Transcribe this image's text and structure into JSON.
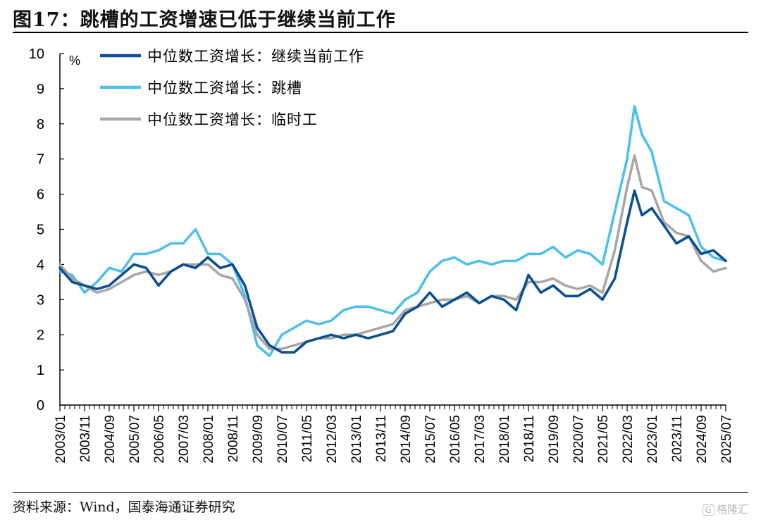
{
  "figure": {
    "title": "图17：跳槽的工资增速已低于继续当前工作",
    "source": "资料来源：Wind，国泰海通证券研究",
    "watermark": {
      "badge": "G",
      "text": "格隆汇"
    }
  },
  "chart_data": {
    "type": "line",
    "unit": "%",
    "ylim": [
      0,
      10
    ],
    "yticks": [
      "0",
      "1",
      "2",
      "3",
      "4",
      "5",
      "6",
      "7",
      "8",
      "9",
      "10"
    ],
    "xticks": [
      "2003/01",
      "2003/11",
      "2004/09",
      "2005/07",
      "2006/05",
      "2007/03",
      "2008/01",
      "2008/11",
      "2009/09",
      "2010/07",
      "2011/05",
      "2012/03",
      "2013/01",
      "2013/11",
      "2014/09",
      "2015/07",
      "2016/05",
      "2017/03",
      "2018/01",
      "2018/11",
      "2019/09",
      "2020/07",
      "2021/05",
      "2022/03",
      "2023/01",
      "2023/11",
      "2024/09",
      "2025/07"
    ],
    "grid": false,
    "legend_position": "top-left",
    "series": [
      {
        "name": "中位数工资增长：继续当前工作",
        "color": "#0b4f91",
        "points": [
          [
            "2003/01",
            3.9
          ],
          [
            "2003/06",
            3.5
          ],
          [
            "2003/11",
            3.4
          ],
          [
            "2004/04",
            3.3
          ],
          [
            "2004/09",
            3.4
          ],
          [
            "2005/02",
            3.7
          ],
          [
            "2005/07",
            4.0
          ],
          [
            "2005/12",
            3.9
          ],
          [
            "2006/05",
            3.4
          ],
          [
            "2006/10",
            3.8
          ],
          [
            "2007/03",
            4.0
          ],
          [
            "2007/08",
            3.9
          ],
          [
            "2008/01",
            4.2
          ],
          [
            "2008/06",
            3.9
          ],
          [
            "2008/11",
            4.0
          ],
          [
            "2009/04",
            3.4
          ],
          [
            "2009/09",
            2.2
          ],
          [
            "2010/02",
            1.7
          ],
          [
            "2010/07",
            1.5
          ],
          [
            "2010/12",
            1.5
          ],
          [
            "2011/05",
            1.8
          ],
          [
            "2011/10",
            1.9
          ],
          [
            "2012/03",
            2.0
          ],
          [
            "2012/08",
            1.9
          ],
          [
            "2013/01",
            2.0
          ],
          [
            "2013/06",
            1.9
          ],
          [
            "2013/11",
            2.0
          ],
          [
            "2014/04",
            2.1
          ],
          [
            "2014/09",
            2.6
          ],
          [
            "2015/02",
            2.8
          ],
          [
            "2015/07",
            3.2
          ],
          [
            "2015/12",
            2.8
          ],
          [
            "2016/05",
            3.0
          ],
          [
            "2016/10",
            3.2
          ],
          [
            "2017/03",
            2.9
          ],
          [
            "2017/08",
            3.1
          ],
          [
            "2018/01",
            3.0
          ],
          [
            "2018/06",
            2.7
          ],
          [
            "2018/11",
            3.7
          ],
          [
            "2019/04",
            3.2
          ],
          [
            "2019/09",
            3.4
          ],
          [
            "2020/02",
            3.1
          ],
          [
            "2020/07",
            3.1
          ],
          [
            "2020/12",
            3.3
          ],
          [
            "2021/05",
            3.0
          ],
          [
            "2021/10",
            3.6
          ],
          [
            "2022/03",
            5.2
          ],
          [
            "2022/06",
            6.1
          ],
          [
            "2022/09",
            5.4
          ],
          [
            "2023/01",
            5.6
          ],
          [
            "2023/06",
            5.1
          ],
          [
            "2023/11",
            4.6
          ],
          [
            "2024/04",
            4.8
          ],
          [
            "2024/09",
            4.3
          ],
          [
            "2025/02",
            4.4
          ],
          [
            "2025/07",
            4.1
          ]
        ]
      },
      {
        "name": "中位数工资增长：跳槽",
        "color": "#4fc0ea",
        "points": [
          [
            "2003/01",
            3.8
          ],
          [
            "2003/06",
            3.7
          ],
          [
            "2003/11",
            3.2
          ],
          [
            "2004/04",
            3.5
          ],
          [
            "2004/09",
            3.9
          ],
          [
            "2005/02",
            3.8
          ],
          [
            "2005/07",
            4.3
          ],
          [
            "2005/12",
            4.3
          ],
          [
            "2006/05",
            4.4
          ],
          [
            "2006/10",
            4.6
          ],
          [
            "2007/03",
            4.6
          ],
          [
            "2007/08",
            5.0
          ],
          [
            "2008/01",
            4.3
          ],
          [
            "2008/06",
            4.3
          ],
          [
            "2008/11",
            4.0
          ],
          [
            "2009/04",
            3.1
          ],
          [
            "2009/09",
            1.7
          ],
          [
            "2010/02",
            1.4
          ],
          [
            "2010/07",
            2.0
          ],
          [
            "2010/12",
            2.2
          ],
          [
            "2011/05",
            2.4
          ],
          [
            "2011/10",
            2.3
          ],
          [
            "2012/03",
            2.4
          ],
          [
            "2012/08",
            2.7
          ],
          [
            "2013/01",
            2.8
          ],
          [
            "2013/06",
            2.8
          ],
          [
            "2013/11",
            2.7
          ],
          [
            "2014/04",
            2.6
          ],
          [
            "2014/09",
            3.0
          ],
          [
            "2015/02",
            3.2
          ],
          [
            "2015/07",
            3.8
          ],
          [
            "2015/12",
            4.1
          ],
          [
            "2016/05",
            4.2
          ],
          [
            "2016/10",
            4.0
          ],
          [
            "2017/03",
            4.1
          ],
          [
            "2017/08",
            4.0
          ],
          [
            "2018/01",
            4.1
          ],
          [
            "2018/06",
            4.1
          ],
          [
            "2018/11",
            4.3
          ],
          [
            "2019/04",
            4.3
          ],
          [
            "2019/09",
            4.5
          ],
          [
            "2020/02",
            4.2
          ],
          [
            "2020/07",
            4.4
          ],
          [
            "2020/12",
            4.3
          ],
          [
            "2021/05",
            4.0
          ],
          [
            "2021/10",
            5.5
          ],
          [
            "2022/03",
            7.0
          ],
          [
            "2022/06",
            8.5
          ],
          [
            "2022/09",
            7.7
          ],
          [
            "2023/01",
            7.2
          ],
          [
            "2023/06",
            5.8
          ],
          [
            "2023/11",
            5.6
          ],
          [
            "2024/04",
            5.4
          ],
          [
            "2024/09",
            4.5
          ],
          [
            "2025/02",
            4.2
          ],
          [
            "2025/07",
            4.1
          ]
        ]
      },
      {
        "name": "中位数工资增长：临时工",
        "color": "#a7a7a7",
        "points": [
          [
            "2003/01",
            4.0
          ],
          [
            "2003/06",
            3.6
          ],
          [
            "2003/11",
            3.4
          ],
          [
            "2004/04",
            3.2
          ],
          [
            "2004/09",
            3.3
          ],
          [
            "2005/02",
            3.5
          ],
          [
            "2005/07",
            3.7
          ],
          [
            "2005/12",
            3.8
          ],
          [
            "2006/05",
            3.7
          ],
          [
            "2006/10",
            3.8
          ],
          [
            "2007/03",
            4.0
          ],
          [
            "2007/08",
            4.0
          ],
          [
            "2008/01",
            4.0
          ],
          [
            "2008/06",
            3.7
          ],
          [
            "2008/11",
            3.6
          ],
          [
            "2009/04",
            3.0
          ],
          [
            "2009/09",
            2.0
          ],
          [
            "2010/02",
            1.6
          ],
          [
            "2010/07",
            1.6
          ],
          [
            "2010/12",
            1.7
          ],
          [
            "2011/05",
            1.8
          ],
          [
            "2011/10",
            1.9
          ],
          [
            "2012/03",
            1.9
          ],
          [
            "2012/08",
            2.0
          ],
          [
            "2013/01",
            2.0
          ],
          [
            "2013/06",
            2.1
          ],
          [
            "2013/11",
            2.2
          ],
          [
            "2014/04",
            2.3
          ],
          [
            "2014/09",
            2.7
          ],
          [
            "2015/02",
            2.8
          ],
          [
            "2015/07",
            2.9
          ],
          [
            "2015/12",
            3.0
          ],
          [
            "2016/05",
            3.0
          ],
          [
            "2016/10",
            3.1
          ],
          [
            "2017/03",
            2.9
          ],
          [
            "2017/08",
            3.1
          ],
          [
            "2018/01",
            3.1
          ],
          [
            "2018/06",
            3.0
          ],
          [
            "2018/11",
            3.5
          ],
          [
            "2019/04",
            3.5
          ],
          [
            "2019/09",
            3.6
          ],
          [
            "2020/02",
            3.4
          ],
          [
            "2020/07",
            3.3
          ],
          [
            "2020/12",
            3.4
          ],
          [
            "2021/05",
            3.2
          ],
          [
            "2021/10",
            4.4
          ],
          [
            "2022/03",
            6.2
          ],
          [
            "2022/06",
            7.1
          ],
          [
            "2022/09",
            6.2
          ],
          [
            "2023/01",
            6.1
          ],
          [
            "2023/06",
            5.2
          ],
          [
            "2023/11",
            4.9
          ],
          [
            "2024/04",
            4.8
          ],
          [
            "2024/09",
            4.1
          ],
          [
            "2025/02",
            3.8
          ],
          [
            "2025/07",
            3.9
          ]
        ]
      }
    ]
  }
}
